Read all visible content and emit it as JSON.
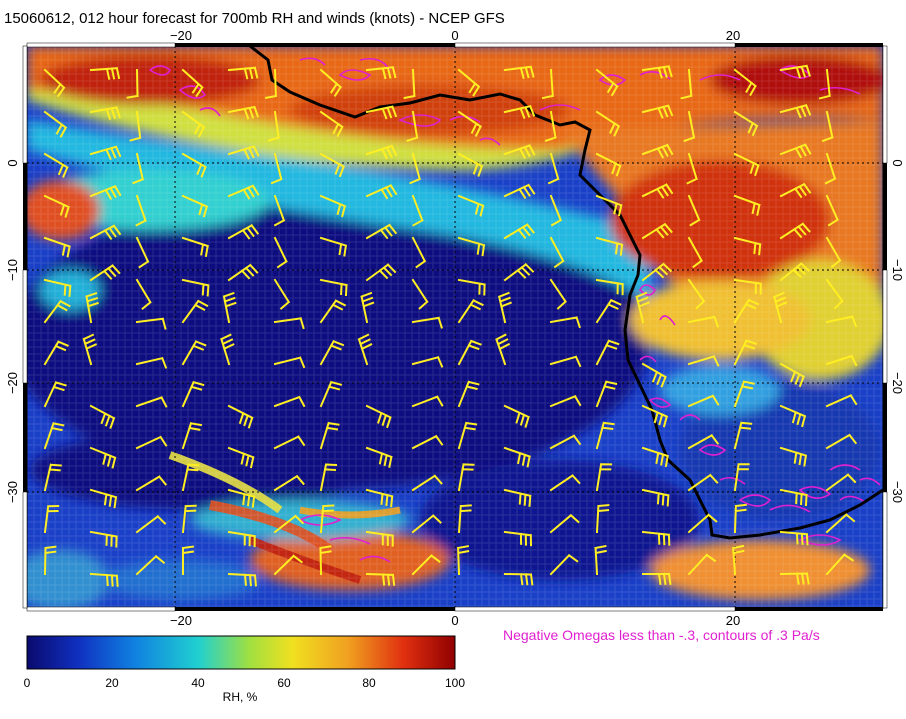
{
  "title": "15060612, 012 hour forecast for 700mb RH and winds (knots) - NCEP GFS",
  "footnote": "Negative Omegas less than -.3, contours of .3 Pa/s",
  "colorbar": {
    "label": "RH, %",
    "ticks": [
      "0",
      "20",
      "40",
      "60",
      "80",
      "100"
    ],
    "colors": [
      "#0a0a6e",
      "#1030c0",
      "#1080e0",
      "#20d0d0",
      "#a0e040",
      "#f0e020",
      "#f0a020",
      "#e03010",
      "#900000"
    ]
  },
  "axes": {
    "top_ticks": [
      "−20",
      "0",
      "20"
    ],
    "bottom_ticks": [
      "−20",
      "0",
      "20"
    ],
    "left_ticks": [
      "0",
      "−10",
      "−20",
      "−30"
    ],
    "right_ticks": [
      "0",
      "−10",
      "−20",
      "−30"
    ]
  },
  "colors": {
    "barb": "#ffee22",
    "omega_contour": "#e020d0",
    "coastline": "#000000",
    "ocean_dry": "#0a1aa0"
  }
}
